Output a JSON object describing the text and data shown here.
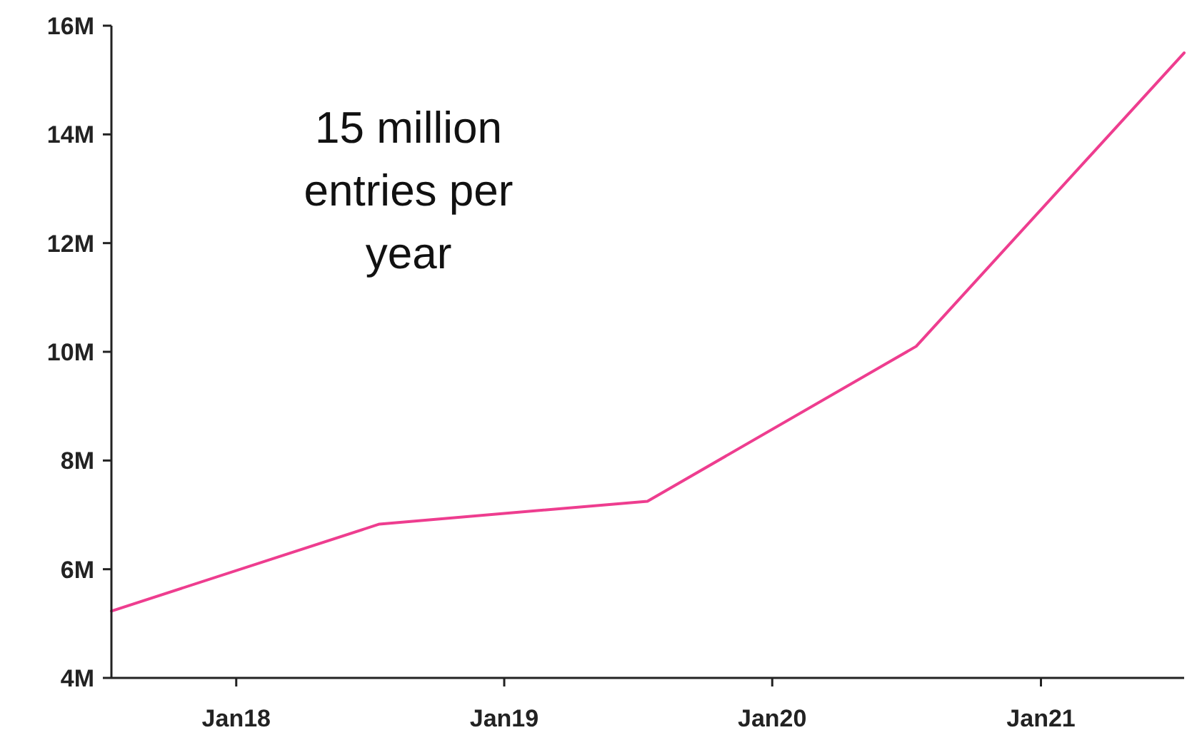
{
  "chart_data": {
    "type": "line",
    "x": [
      "2017-07-15",
      "2018-07-15",
      "2019-07-15",
      "2020-07-15",
      "2021-07-15"
    ],
    "series": [
      {
        "color": "#ee3d8f",
        "values": [
          5230000,
          6830000,
          7250000,
          10100000,
          15500000
        ]
      }
    ],
    "xlim": [
      "2017-07-15",
      "2021-07-15"
    ],
    "xticks": [
      {
        "value": "2018-01-01",
        "label": "Jan18"
      },
      {
        "value": "2019-01-01",
        "label": "Jan19"
      },
      {
        "value": "2020-01-01",
        "label": "Jan20"
      },
      {
        "value": "2021-01-01",
        "label": "Jan21"
      }
    ],
    "ylim": [
      4000000,
      16000000
    ],
    "yticks": [
      {
        "value": 4000000,
        "label": "4M"
      },
      {
        "value": 6000000,
        "label": "6M"
      },
      {
        "value": 8000000,
        "label": "8M"
      },
      {
        "value": 10000000,
        "label": "10M"
      },
      {
        "value": 12000000,
        "label": "12M"
      },
      {
        "value": 14000000,
        "label": "14M"
      },
      {
        "value": 16000000,
        "label": "16M"
      }
    ],
    "grid": false,
    "marker": "none",
    "line_style": "solid",
    "annotations": [
      "15 million entries per year"
    ]
  }
}
